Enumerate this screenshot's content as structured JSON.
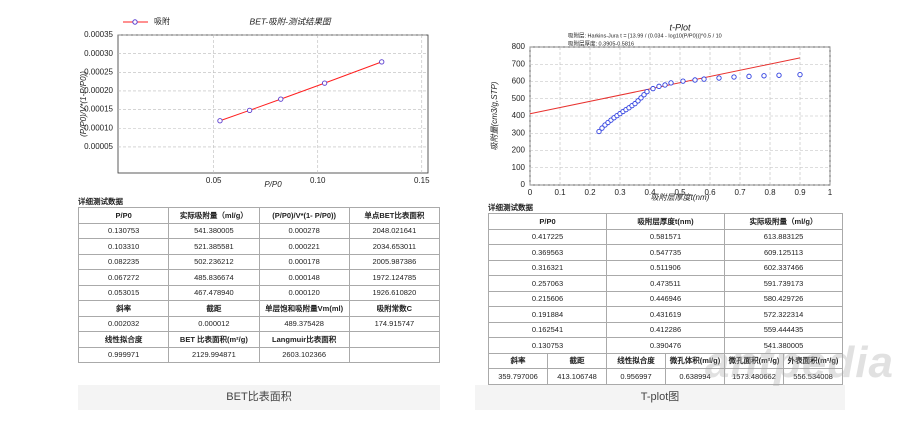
{
  "chart_data": [
    {
      "type": "line",
      "title": "BET-吸附-测试结果图",
      "x_label": "P/P0",
      "y_label": "(P/P0)/V*(1-P/P0))",
      "series": [
        {
          "name": "吸附",
          "color": "#ff2020",
          "marker_color": "#5a3ccf",
          "x": [
            0.130753,
            0.10331,
            0.082235,
            0.067272,
            0.053015
          ],
          "values": [
            0.000278,
            0.000221,
            0.000178,
            0.000148,
            0.00012
          ]
        }
      ],
      "xlim": [
        0.004,
        0.153
      ],
      "xticks": [
        0.05,
        {
          "value": 0.1,
          "label": "0.10"
        },
        0.15
      ],
      "ylim": [
        -2e-05,
        0.00035
      ],
      "yticks": [
        5e-05,
        {
          "value": 0.0001,
          "label": "0.00010"
        },
        0.00015,
        {
          "value": 0.0002,
          "label": "0.00020"
        },
        0.00025,
        {
          "value": 0.0003,
          "label": "0.00030"
        },
        0.00035
      ],
      "grid": true,
      "legend": "top-left"
    },
    {
      "type": "scatter",
      "title": "t-Plot",
      "subtitle": [
        "吸附层: Harkins-Jura t = [13.99 / (0.034 - log10(P/P0))]^0.5 / 10",
        "吸附层厚度: 0.3905-0.5816"
      ],
      "x_label": "吸附层厚度t(nm)",
      "y_label": "吸附量(cm3/g,STP)",
      "series": [
        {
          "color": "#2f3fe0",
          "x": [
            0.23,
            0.24,
            0.25,
            0.26,
            0.27,
            0.28,
            0.29,
            0.3,
            0.31,
            0.32,
            0.33,
            0.34,
            0.35,
            0.36,
            0.37,
            0.38,
            0.39,
            0.41,
            0.43,
            0.45,
            0.47,
            0.51,
            0.55,
            0.58,
            0.63,
            0.68,
            0.73,
            0.78,
            0.83,
            0.9
          ],
          "values": [
            310,
            330,
            348,
            362,
            376,
            390,
            402,
            414,
            426,
            437,
            448,
            460,
            472,
            488,
            505,
            523,
            541,
            559,
            572,
            580,
            592,
            602,
            609,
            614,
            620,
            626,
            630,
            633,
            636,
            640
          ]
        }
      ],
      "fit": {
        "slope": 359.797006,
        "intercept": 413.106748,
        "color": "#e8322f"
      },
      "xlim": [
        0,
        1
      ],
      "xticks": [
        0,
        0.1,
        0.2,
        0.3,
        0.4,
        0.5,
        0.6,
        0.7,
        0.8,
        0.9,
        1
      ],
      "ylim": [
        0,
        800
      ],
      "yticks": [
        0,
        100,
        200,
        300,
        400,
        500,
        600,
        700,
        800
      ],
      "grid": true
    }
  ],
  "tables": [
    {
      "title": "详细测试数据",
      "sections": [
        {
          "header": [
            "P/P0",
            "实际吸附量（ml/g）",
            "(P/P0)/V*(1- P/P0))",
            "单点BET比表面积"
          ],
          "rows": [
            [
              "0.130753",
              "541.380005",
              "0.000278",
              "2048.021641"
            ],
            [
              "0.103310",
              "521.385581",
              "0.000221",
              "2034.653011"
            ],
            [
              "0.082235",
              "502.236212",
              "0.000178",
              "2005.987386"
            ],
            [
              "0.067272",
              "485.836674",
              "0.000148",
              "1972.124785"
            ],
            [
              "0.053015",
              "467.478940",
              "0.000120",
              "1926.610820"
            ]
          ]
        },
        {
          "header": [
            "斜率",
            "截距",
            "单层饱和吸附量Vm(ml)",
            "吸附常数C"
          ],
          "rows": [
            [
              "0.002032",
              "0.000012",
              "489.375428",
              "174.915747"
            ]
          ]
        },
        {
          "header": [
            "线性拟合度",
            "BET 比表面积(m²/g)",
            "Langmuir比表面积"
          ],
          "rows": [
            [
              "0.999971",
              "2129.994871",
              "2603.102366"
            ]
          ]
        }
      ]
    },
    {
      "title": "详细测试数据",
      "sections": [
        {
          "header": [
            "P/P0",
            "吸附层厚度t(nm)",
            "实际吸附量（ml/g）"
          ],
          "rows": [
            [
              "0.417225",
              "0.581571",
              "613.883125"
            ],
            [
              "0.369563",
              "0.547735",
              "609.125113"
            ],
            [
              "0.316321",
              "0.511906",
              "602.337466"
            ],
            [
              "0.257063",
              "0.473511",
              "591.739173"
            ],
            [
              "0.215606",
              "0.446946",
              "580.429726"
            ],
            [
              "0.191884",
              "0.431619",
              "572.322314"
            ],
            [
              "0.162541",
              "0.412286",
              "559.444435"
            ],
            [
              "0.130753",
              "0.390476",
              "541.380005"
            ]
          ]
        },
        {
          "header": [
            "斜率",
            "截距",
            "线性拟合度",
            "微孔体积(ml/g)",
            "微孔面积(m²/g)",
            "外表面积(m²/g)"
          ],
          "rows": [
            [
              "359.797006",
              "413.106748",
              "0.956997",
              "0.638994",
              "1573.480662",
              "556.534008"
            ]
          ]
        }
      ]
    }
  ],
  "captions": [
    "BET比表面积",
    "T-plot图"
  ],
  "watermark": "antpedia"
}
